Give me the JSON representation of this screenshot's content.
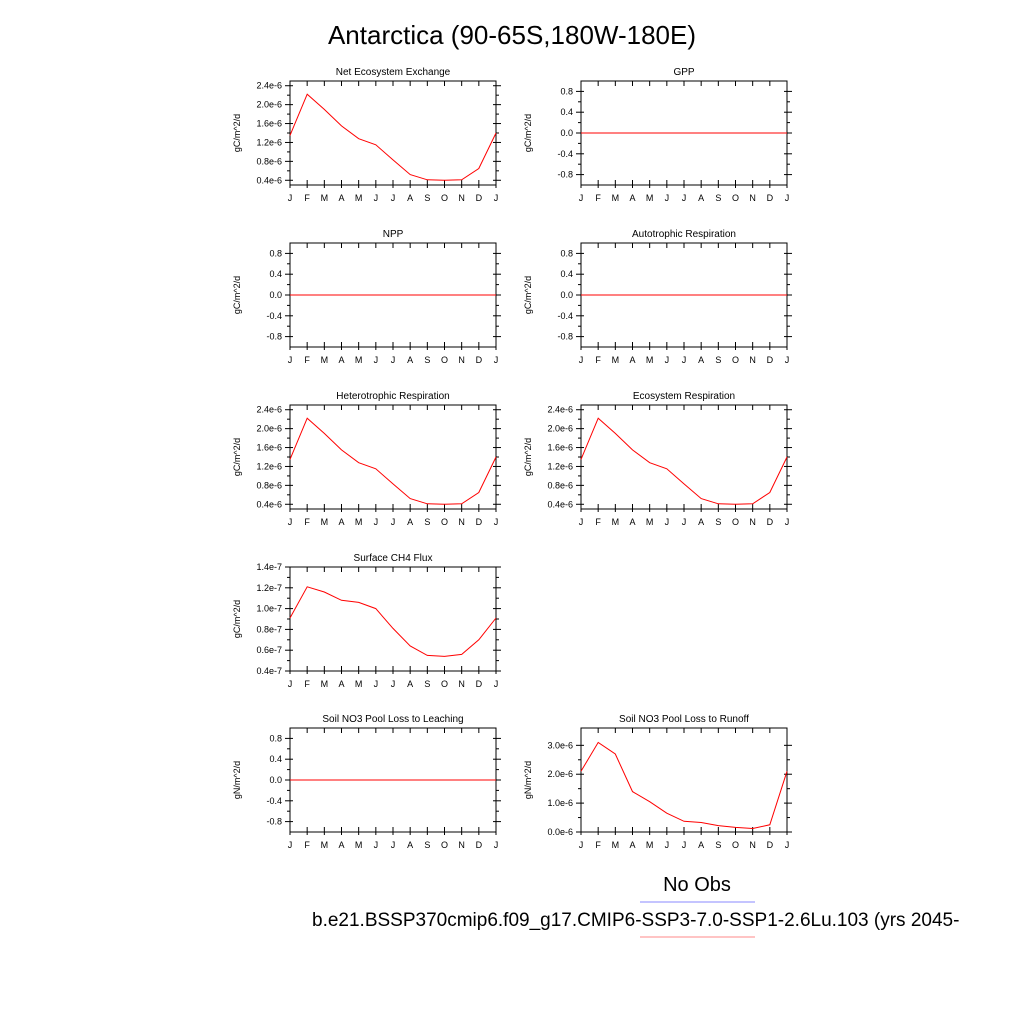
{
  "figure": {
    "title": "Antarctica (90-65S,180W-180E)",
    "legend": {
      "obs_label": "No Obs",
      "obs_color": "#8888ff",
      "model_label": "b.e21.BSSP370cmip6.f09_g17.CMIP6-SSP3-7.0-SSP1-2.6Lu.103 (yrs 2045-",
      "model_color": "#ff8888"
    },
    "line_color": "#ff0000"
  },
  "chart_data": [
    {
      "type": "line",
      "title": "Net Ecosystem Exchange",
      "ylabel": "gC/m^2/d",
      "x": [
        "J",
        "F",
        "M",
        "A",
        "M",
        "J",
        "J",
        "A",
        "S",
        "O",
        "N",
        "D",
        "J"
      ],
      "values": [
        1.35e-06,
        2.22e-06,
        1.9e-06,
        1.55e-06,
        1.28e-06,
        1.15e-06,
        8.3e-07,
        5.2e-07,
        4.1e-07,
        4e-07,
        4.1e-07,
        6.5e-07,
        1.4e-06
      ],
      "ylim": [
        3e-07,
        2.5e-06
      ],
      "yticks": [
        "2.4e-6",
        "2.0e-6",
        "1.6e-6",
        "1.2e-6",
        "0.8e-6",
        "0.4e-6"
      ],
      "ytick_values": [
        2.4e-06,
        2e-06,
        1.6e-06,
        1.2e-06,
        8e-07,
        4e-07
      ]
    },
    {
      "type": "line",
      "title": "GPP",
      "ylabel": "gC/m^2/d",
      "x": [
        "J",
        "F",
        "M",
        "A",
        "M",
        "J",
        "J",
        "A",
        "S",
        "O",
        "N",
        "D",
        "J"
      ],
      "values": [
        0,
        0,
        0,
        0,
        0,
        0,
        0,
        0,
        0,
        0,
        0,
        0,
        0
      ],
      "ylim": [
        -1.0,
        1.0
      ],
      "yticks": [
        "0.8",
        "0.4",
        "0.0",
        "-0.4",
        "-0.8"
      ],
      "ytick_values": [
        0.8,
        0.4,
        0.0,
        -0.4,
        -0.8
      ]
    },
    {
      "type": "line",
      "title": "NPP",
      "ylabel": "gC/m^2/d",
      "x": [
        "J",
        "F",
        "M",
        "A",
        "M",
        "J",
        "J",
        "A",
        "S",
        "O",
        "N",
        "D",
        "J"
      ],
      "values": [
        0,
        0,
        0,
        0,
        0,
        0,
        0,
        0,
        0,
        0,
        0,
        0,
        0
      ],
      "ylim": [
        -1.0,
        1.0
      ],
      "yticks": [
        "0.8",
        "0.4",
        "0.0",
        "-0.4",
        "-0.8"
      ],
      "ytick_values": [
        0.8,
        0.4,
        0.0,
        -0.4,
        -0.8
      ]
    },
    {
      "type": "line",
      "title": "Autotrophic Respiration",
      "ylabel": "gC/m^2/d",
      "x": [
        "J",
        "F",
        "M",
        "A",
        "M",
        "J",
        "J",
        "A",
        "S",
        "O",
        "N",
        "D",
        "J"
      ],
      "values": [
        0,
        0,
        0,
        0,
        0,
        0,
        0,
        0,
        0,
        0,
        0,
        0,
        0
      ],
      "ylim": [
        -1.0,
        1.0
      ],
      "yticks": [
        "0.8",
        "0.4",
        "0.0",
        "-0.4",
        "-0.8"
      ],
      "ytick_values": [
        0.8,
        0.4,
        0.0,
        -0.4,
        -0.8
      ]
    },
    {
      "type": "line",
      "title": "Heterotrophic Respiration",
      "ylabel": "gC/m^2/d",
      "x": [
        "J",
        "F",
        "M",
        "A",
        "M",
        "J",
        "J",
        "A",
        "S",
        "O",
        "N",
        "D",
        "J"
      ],
      "values": [
        1.35e-06,
        2.22e-06,
        1.9e-06,
        1.55e-06,
        1.28e-06,
        1.15e-06,
        8.3e-07,
        5.2e-07,
        4.1e-07,
        4e-07,
        4.1e-07,
        6.5e-07,
        1.4e-06
      ],
      "ylim": [
        3e-07,
        2.5e-06
      ],
      "yticks": [
        "2.4e-6",
        "2.0e-6",
        "1.6e-6",
        "1.2e-6",
        "0.8e-6",
        "0.4e-6"
      ],
      "ytick_values": [
        2.4e-06,
        2e-06,
        1.6e-06,
        1.2e-06,
        8e-07,
        4e-07
      ]
    },
    {
      "type": "line",
      "title": "Ecosystem Respiration",
      "ylabel": "gC/m^2/d",
      "x": [
        "J",
        "F",
        "M",
        "A",
        "M",
        "J",
        "J",
        "A",
        "S",
        "O",
        "N",
        "D",
        "J"
      ],
      "values": [
        1.35e-06,
        2.22e-06,
        1.9e-06,
        1.55e-06,
        1.28e-06,
        1.15e-06,
        8.3e-07,
        5.2e-07,
        4.1e-07,
        4e-07,
        4.1e-07,
        6.5e-07,
        1.4e-06
      ],
      "ylim": [
        3e-07,
        2.5e-06
      ],
      "yticks": [
        "2.4e-6",
        "2.0e-6",
        "1.6e-6",
        "1.2e-6",
        "0.8e-6",
        "0.4e-6"
      ],
      "ytick_values": [
        2.4e-06,
        2e-06,
        1.6e-06,
        1.2e-06,
        8e-07,
        4e-07
      ]
    },
    {
      "type": "line",
      "title": "Surface CH4 Flux",
      "ylabel": "gC/m^2/d",
      "x": [
        "J",
        "F",
        "M",
        "A",
        "M",
        "J",
        "J",
        "A",
        "S",
        "O",
        "N",
        "D",
        "J"
      ],
      "values": [
        9.1e-08,
        1.21e-07,
        1.16e-07,
        1.08e-07,
        1.06e-07,
        1e-07,
        8.1e-08,
        6.4e-08,
        5.5e-08,
        5.4e-08,
        5.6e-08,
        7e-08,
        9.1e-08
      ],
      "ylim": [
        4e-08,
        1.4e-07
      ],
      "yticks": [
        "1.4e-7",
        "1.2e-7",
        "1.0e-7",
        "0.8e-7",
        "0.6e-7",
        "0.4e-7"
      ],
      "ytick_values": [
        1.4e-07,
        1.2e-07,
        1e-07,
        8e-08,
        6e-08,
        4e-08
      ]
    },
    {
      "type": "line",
      "title": "Soil NO3 Pool Loss to Leaching",
      "ylabel": "gN/m^2/d",
      "x": [
        "J",
        "F",
        "M",
        "A",
        "M",
        "J",
        "J",
        "A",
        "S",
        "O",
        "N",
        "D",
        "J"
      ],
      "values": [
        0,
        0,
        0,
        0,
        0,
        0,
        0,
        0,
        0,
        0,
        0,
        0,
        0
      ],
      "ylim": [
        -1.0,
        1.0
      ],
      "yticks": [
        "0.8",
        "0.4",
        "0.0",
        "-0.4",
        "-0.8"
      ],
      "ytick_values": [
        0.8,
        0.4,
        0.0,
        -0.4,
        -0.8
      ]
    },
    {
      "type": "line",
      "title": "Soil NO3 Pool Loss to Runoff",
      "ylabel": "gN/m^2/d",
      "x": [
        "J",
        "F",
        "M",
        "A",
        "M",
        "J",
        "J",
        "A",
        "S",
        "O",
        "N",
        "D",
        "J"
      ],
      "values": [
        2.1e-06,
        3.1e-06,
        2.7e-06,
        1.4e-06,
        1.05e-06,
        6.5e-07,
        3.7e-07,
        3.3e-07,
        2.2e-07,
        1.6e-07,
        1.2e-07,
        2.5e-07,
        2.1e-06
      ],
      "ylim": [
        0.0,
        3.6e-06
      ],
      "yticks": [
        "3.0e-6",
        "2.0e-6",
        "1.0e-6",
        "0.0e-6"
      ],
      "ytick_values": [
        3e-06,
        2e-06,
        1e-06,
        0.0
      ]
    }
  ]
}
